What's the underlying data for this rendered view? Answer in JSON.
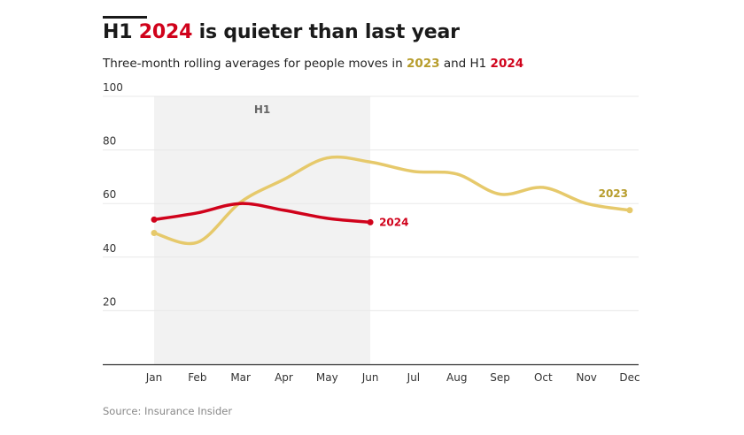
{
  "header": {
    "title_prefix": "H1 ",
    "title_highlight": "2024",
    "title_suffix": " is quieter than last year",
    "subtitle_prefix": "Three-month rolling averages for people moves in ",
    "subtitle_2023": "2023",
    "subtitle_mid": " and H1 ",
    "subtitle_2024": "2024"
  },
  "source": "Source: Insurance Insider",
  "colors": {
    "y2023": "#e6c96b",
    "y2023_label": "#b79d2c",
    "y2024": "#d0021b",
    "shade": "#f2f2f2"
  },
  "chart_data": {
    "type": "line",
    "title": "H1 2024 is quieter than last year",
    "subtitle": "Three-month rolling averages for people moves in 2023 and H1 2024",
    "xlabel": "",
    "ylabel": "",
    "categories": [
      "Jan",
      "Feb",
      "Mar",
      "Apr",
      "May",
      "Jun",
      "Jul",
      "Aug",
      "Sep",
      "Oct",
      "Nov",
      "Dec"
    ],
    "ylim": [
      0,
      100
    ],
    "yticks": [
      20,
      40,
      60,
      80,
      100
    ],
    "grid": true,
    "shaded_region": {
      "label": "H1",
      "from": "Jan",
      "to": "Jun"
    },
    "series": [
      {
        "name": "2023",
        "values": [
          49,
          45.5,
          60.5,
          69,
          77,
          75.5,
          72,
          71,
          63.5,
          66,
          60,
          57.5
        ]
      },
      {
        "name": "2024",
        "values": [
          54,
          56.5,
          60,
          57.5,
          54.5,
          53
        ]
      }
    ],
    "source": "Source: Insurance Insider"
  }
}
